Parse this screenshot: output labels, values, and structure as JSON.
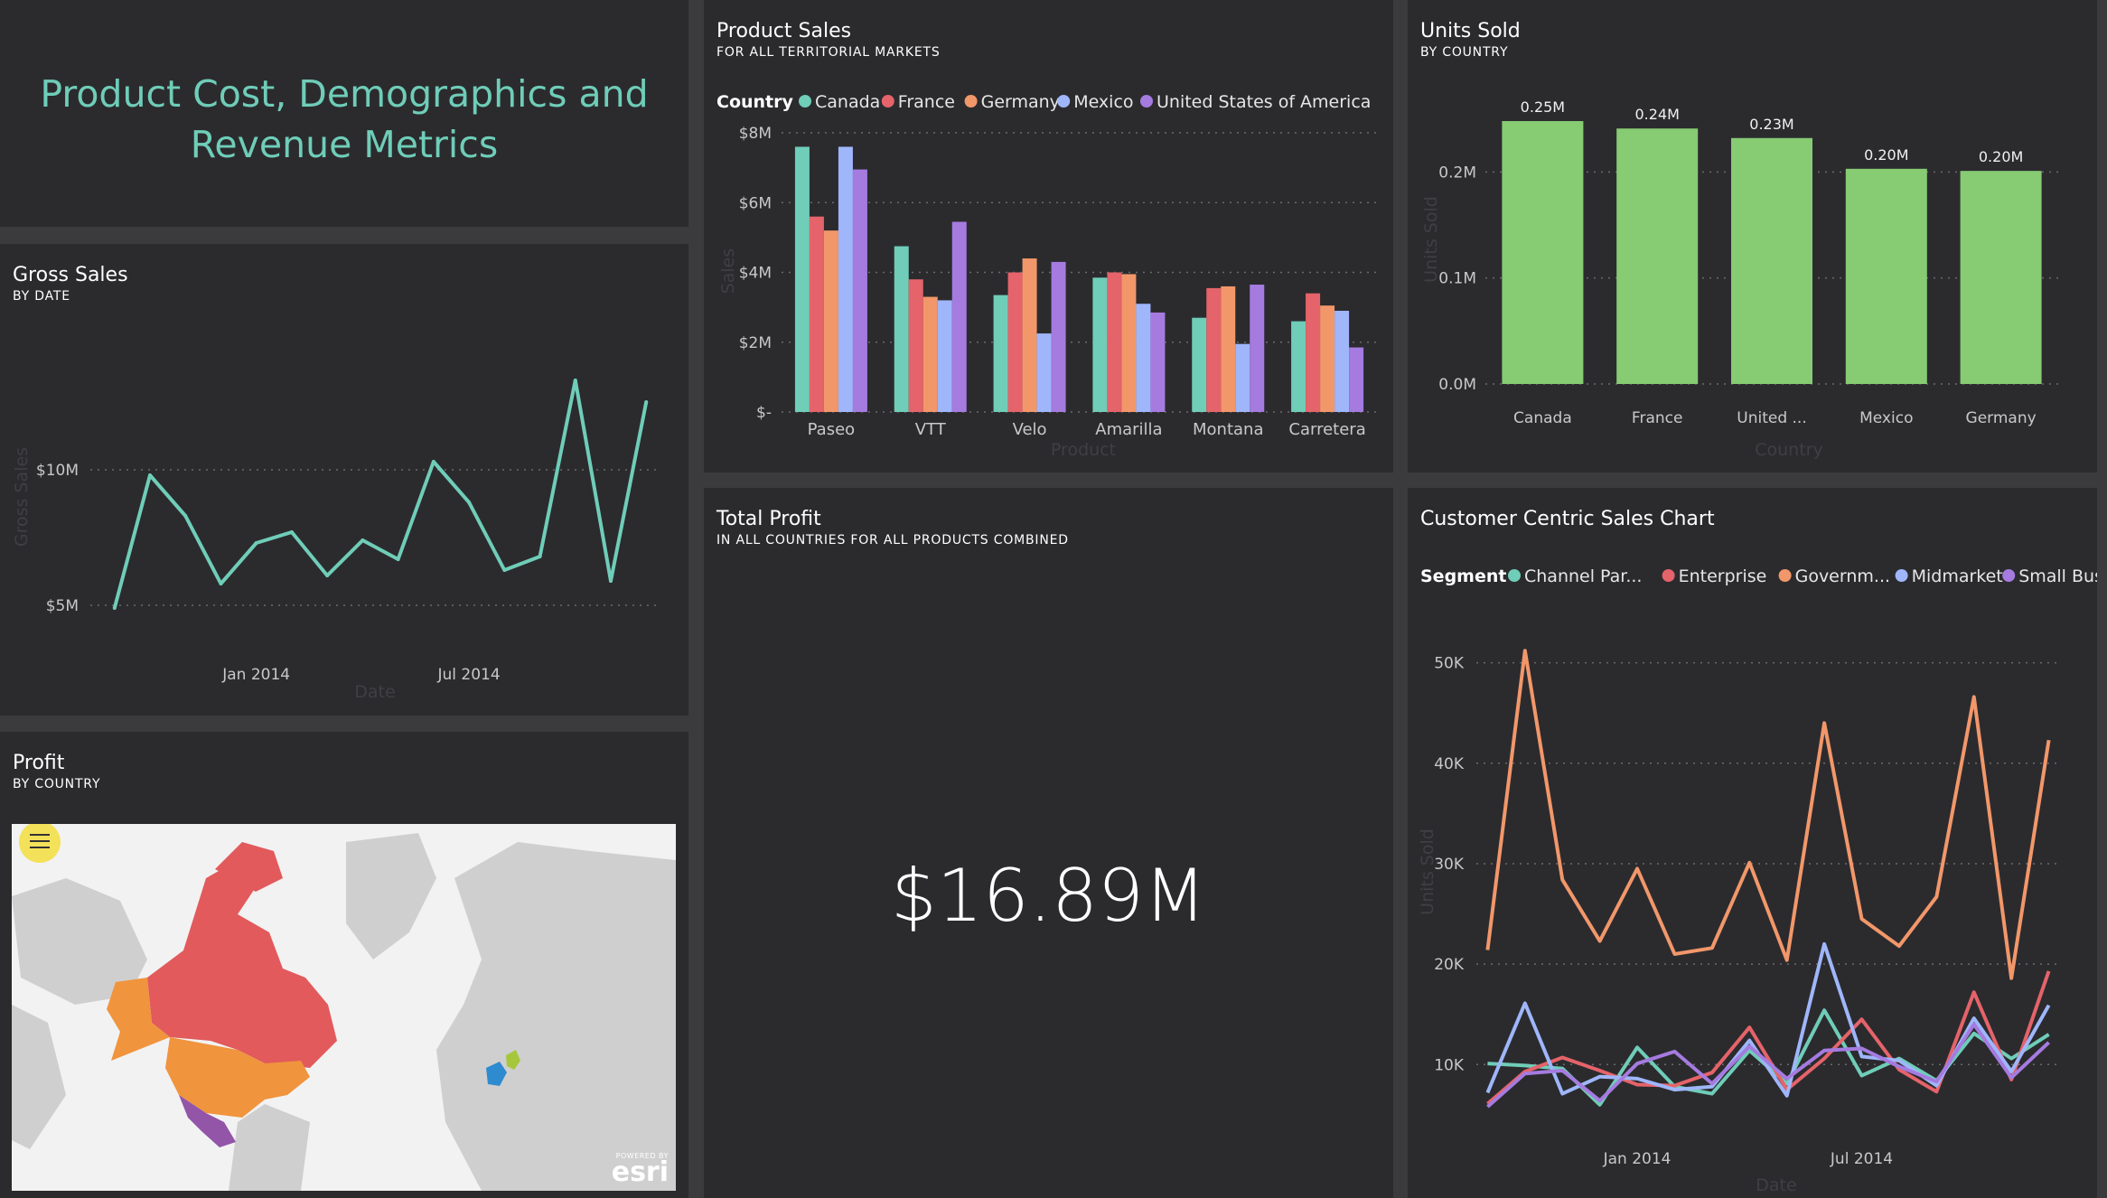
{
  "dashboard": {
    "title_line1": "Product Cost, Demographics and",
    "title_line2": "Revenue Metrics"
  },
  "gross_sales": {
    "title": "Gross Sales",
    "subtitle": "BY DATE"
  },
  "product_sales": {
    "title": "Product Sales",
    "subtitle": "FOR ALL TERRITORIAL MARKETS"
  },
  "units_sold": {
    "title": "Units Sold",
    "subtitle": "BY COUNTRY"
  },
  "profit_map": {
    "title": "Profit",
    "subtitle": "BY COUNTRY",
    "attribution": "esri",
    "attribution_small": "POWERED BY"
  },
  "total_profit": {
    "title": "Total Profit",
    "subtitle": "IN ALL COUNTRIES FOR ALL PRODUCTS COMBINED",
    "value": "$16.89M"
  },
  "customer_sales": {
    "title": "Customer Centric Sales Chart"
  },
  "colors": {
    "teal": "#6fcdb8",
    "red": "#e5636a",
    "orange": "#f2976a",
    "blue": "#9fb6fb",
    "purple": "#a57be0",
    "green": "#87cb73",
    "title_teal": "#6fcdb8"
  },
  "chart_data": [
    {
      "id": "gross_sales",
      "type": "line",
      "xlabel": "Date",
      "ylabel": "Gross Sales",
      "yticks": [
        "$5M",
        "$10M"
      ],
      "ytick_values": [
        5,
        10
      ],
      "xticks": [
        "Jan 2014",
        "Jul 2014"
      ],
      "xtick_positions": [
        4,
        10
      ],
      "ylim": [
        4,
        15
      ],
      "xlim": [
        -0.3,
        15.3
      ],
      "x": [
        0,
        1,
        2,
        3,
        4,
        5,
        6,
        7,
        8,
        9,
        10,
        11,
        12,
        13,
        14,
        15
      ],
      "values": [
        4.9,
        9.8,
        8.3,
        5.8,
        7.3,
        7.7,
        6.1,
        7.4,
        6.7,
        10.3,
        8.8,
        6.3,
        6.8,
        13.3,
        5.9,
        12.5
      ]
    },
    {
      "id": "product_sales",
      "type": "bar",
      "xlabel": "Product",
      "ylabel": "Sales",
      "legend_title": "Country",
      "ylim": [
        0,
        8
      ],
      "yticks": [
        "$-",
        "$2M",
        "$4M",
        "$6M",
        "$8M"
      ],
      "ytick_values": [
        0,
        2,
        4,
        6,
        8
      ],
      "categories": [
        "Paseo",
        "VTT",
        "Velo",
        "Amarilla",
        "Montana",
        "Carretera"
      ],
      "series": [
        {
          "name": "Canada",
          "color": "#6fcdb8",
          "values": [
            7.6,
            4.75,
            3.35,
            3.85,
            2.7,
            2.6
          ]
        },
        {
          "name": "France",
          "color": "#e5636a",
          "values": [
            5.6,
            3.8,
            4.0,
            4.0,
            3.55,
            3.4
          ]
        },
        {
          "name": "Germany",
          "color": "#f2976a",
          "values": [
            5.2,
            3.3,
            4.4,
            3.95,
            3.6,
            3.05
          ]
        },
        {
          "name": "Mexico",
          "color": "#9fb6fb",
          "values": [
            7.6,
            3.2,
            2.25,
            3.1,
            1.95,
            2.9
          ]
        },
        {
          "name": "United States of America",
          "color": "#a57be0",
          "values": [
            6.95,
            5.45,
            4.3,
            2.85,
            3.65,
            1.85
          ]
        }
      ]
    },
    {
      "id": "units_sold",
      "type": "bar",
      "xlabel": "Country",
      "ylabel": "Units Sold",
      "ylim": [
        0,
        0.3
      ],
      "yticks": [
        "0.0M",
        "0.1M",
        "0.2M"
      ],
      "ytick_values": [
        0,
        0.1,
        0.2
      ],
      "categories": [
        "Canada",
        "France",
        "United ...",
        "Mexico",
        "Germany"
      ],
      "values": [
        0.248,
        0.241,
        0.232,
        0.203,
        0.201
      ],
      "labels": [
        "0.25M",
        "0.24M",
        "0.23M",
        "0.20M",
        "0.20M"
      ],
      "color": "#87cb73"
    },
    {
      "id": "customer_sales",
      "type": "line",
      "xlabel": "Date",
      "ylabel": "Units Sold",
      "legend_title": "Segment",
      "ylim": [
        4000,
        55000
      ],
      "xlim": [
        -0.3,
        15.3
      ],
      "yticks": [
        "10K",
        "20K",
        "30K",
        "40K",
        "50K"
      ],
      "ytick_values": [
        10000,
        20000,
        30000,
        40000,
        50000
      ],
      "xticks": [
        "Jan 2014",
        "Jul 2014"
      ],
      "xtick_positions": [
        4,
        10
      ],
      "x": [
        0,
        1,
        2,
        3,
        4,
        5,
        6,
        7,
        8,
        9,
        10,
        11,
        12,
        13,
        14,
        15
      ],
      "series": [
        {
          "name": "Channel Par...",
          "color": "#6fcdb8",
          "values": [
            10100,
            9900,
            9600,
            6000,
            11700,
            7800,
            7100,
            11400,
            8100,
            15400,
            8900,
            10600,
            8400,
            13100,
            10600,
            13000
          ]
        },
        {
          "name": "Enterprise",
          "color": "#e5636a",
          "values": [
            6100,
            9300,
            10700,
            9400,
            8000,
            7900,
            9200,
            13700,
            7500,
            10600,
            14500,
            9500,
            7300,
            17200,
            8500,
            19300
          ]
        },
        {
          "name": "Governm...",
          "color": "#f2976a",
          "values": [
            21400,
            51200,
            28400,
            22300,
            29500,
            21000,
            21600,
            30100,
            20400,
            44000,
            24500,
            21800,
            26700,
            46600,
            18600,
            42300
          ]
        },
        {
          "name": "Midmarket",
          "color": "#9fb6fb",
          "values": [
            7200,
            16100,
            7100,
            8800,
            8600,
            7500,
            7800,
            12400,
            6900,
            22000,
            10800,
            10400,
            7900,
            14600,
            9300,
            15900
          ]
        },
        {
          "name": "Small Busi...",
          "color": "#a57be0",
          "values": [
            5800,
            9100,
            9400,
            6400,
            10100,
            11300,
            8100,
            11800,
            8600,
            11400,
            11600,
            9800,
            8300,
            14000,
            8700,
            12200
          ]
        }
      ]
    }
  ]
}
